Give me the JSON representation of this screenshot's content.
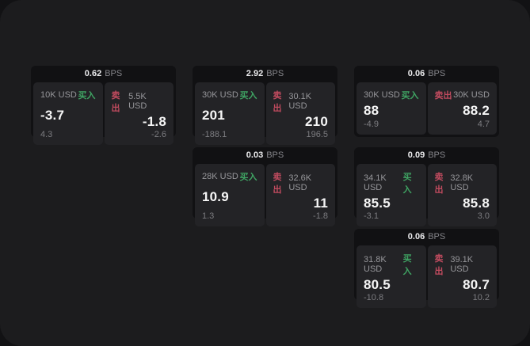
{
  "labels": {
    "bps_unit": "BPS",
    "buy": "买入",
    "sell": "卖出"
  },
  "colors": {
    "buy_green": "#3fa463",
    "sell_red": "#c14b5f",
    "page_bg": "#1c1c1e",
    "card_bg": "#111113",
    "panel_bg": "#232326"
  },
  "cards": [
    {
      "row": 1,
      "col": 1,
      "bps": "0.62",
      "buy": {
        "size": "10K USD",
        "value": "-3.7",
        "sub": "4.3"
      },
      "sell": {
        "size": "5.5K USD",
        "value": "-1.8",
        "sub": "-2.6"
      }
    },
    {
      "row": 1,
      "col": 2,
      "bps": "2.92",
      "buy": {
        "size": "30K USD",
        "value": "201",
        "sub": "-188.1"
      },
      "sell": {
        "size": "30.1K USD",
        "value": "210",
        "sub": "196.5"
      }
    },
    {
      "row": 1,
      "col": 3,
      "bps": "0.06",
      "buy": {
        "size": "30K USD",
        "value": "88",
        "sub": "-4.9"
      },
      "sell": {
        "size": "30K USD",
        "value": "88.2",
        "sub": "4.7"
      }
    },
    {
      "row": 2,
      "col": 2,
      "bps": "0.03",
      "buy": {
        "size": "28K USD",
        "value": "10.9",
        "sub": "1.3"
      },
      "sell": {
        "size": "32.6K USD",
        "value": "11",
        "sub": "-1.8"
      }
    },
    {
      "row": 2,
      "col": 3,
      "bps": "0.09",
      "buy": {
        "size": "34.1K USD",
        "value": "85.5",
        "sub": "-3.1"
      },
      "sell": {
        "size": "32.8K USD",
        "value": "85.8",
        "sub": "3.0"
      }
    },
    {
      "row": 3,
      "col": 3,
      "bps": "0.06",
      "buy": {
        "size": "31.8K USD",
        "value": "80.5",
        "sub": "-10.8"
      },
      "sell": {
        "size": "39.1K USD",
        "value": "80.7",
        "sub": "10.2"
      }
    }
  ]
}
